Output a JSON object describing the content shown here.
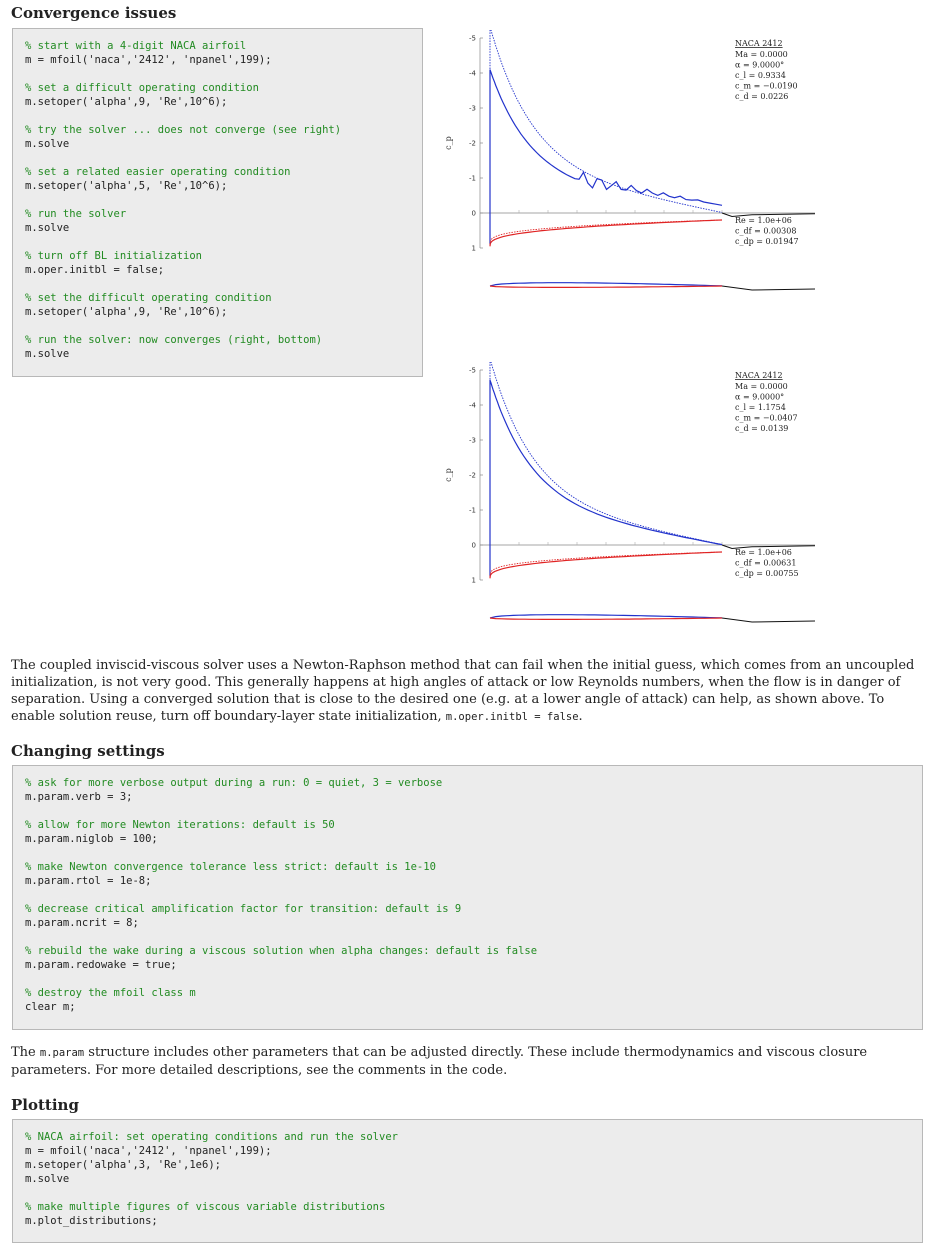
{
  "sections": {
    "convergence": {
      "heading": "Convergence issues",
      "code": [
        {
          "type": "comment",
          "text": "% start with a 4-digit NACA airfoil"
        },
        {
          "type": "code",
          "text": "m = mfoil('naca','2412', 'npanel',199);"
        },
        {
          "type": "blank",
          "text": ""
        },
        {
          "type": "comment",
          "text": "% set a difficult operating condition"
        },
        {
          "type": "code",
          "text": "m.setoper('alpha',9, 'Re',10^6);"
        },
        {
          "type": "blank",
          "text": ""
        },
        {
          "type": "comment",
          "text": "% try the solver ... does not converge (see right)"
        },
        {
          "type": "code",
          "text": "m.solve"
        },
        {
          "type": "blank",
          "text": ""
        },
        {
          "type": "comment",
          "text": "% set a related easier operating condition"
        },
        {
          "type": "code",
          "text": "m.setoper('alpha',5, 'Re',10^6);"
        },
        {
          "type": "blank",
          "text": ""
        },
        {
          "type": "comment",
          "text": "% run the solver"
        },
        {
          "type": "code",
          "text": "m.solve"
        },
        {
          "type": "blank",
          "text": ""
        },
        {
          "type": "comment",
          "text": "% turn off BL initialization"
        },
        {
          "type": "code",
          "text": "m.oper.initbl = false;"
        },
        {
          "type": "blank",
          "text": ""
        },
        {
          "type": "comment",
          "text": "% set the difficult operating condition"
        },
        {
          "type": "code",
          "text": "m.setoper('alpha',9, 'Re',10^6);"
        },
        {
          "type": "blank",
          "text": ""
        },
        {
          "type": "comment",
          "text": "% run the solver: now converges (right, bottom)"
        },
        {
          "type": "code",
          "text": "m.solve"
        }
      ],
      "paragraph_before": "The coupled inviscid-viscous solver uses a Newton-Raphson method that can fail when the initial guess, which comes from an uncoupled initialization, is not very good. This generally happens at high angles of attack or low Reynolds numbers, when the flow is in danger of separation. Using a converged solution that is close to the desired one (e.g. at a lower angle of attack) can help, as shown above. To enable solution reuse, turn off boundary-layer state initialization, ",
      "paragraph_code": "m.oper.initbl = false",
      "paragraph_after": "."
    },
    "settings": {
      "heading": "Changing settings",
      "code": [
        {
          "type": "comment",
          "text": "% ask for more verbose output during a run: 0 = quiet, 3 = verbose"
        },
        {
          "type": "code",
          "text": "m.param.verb = 3;"
        },
        {
          "type": "blank",
          "text": ""
        },
        {
          "type": "comment",
          "text": "% allow for more Newton iterations: default is 50"
        },
        {
          "type": "code",
          "text": "m.param.niglob = 100;"
        },
        {
          "type": "blank",
          "text": ""
        },
        {
          "type": "comment",
          "text": "% make Newton convergence tolerance less strict: default is 1e-10"
        },
        {
          "type": "code",
          "text": "m.param.rtol = 1e-8;"
        },
        {
          "type": "blank",
          "text": ""
        },
        {
          "type": "comment",
          "text": "% decrease critical amplification factor for transition: default is 9"
        },
        {
          "type": "code",
          "text": "m.param.ncrit = 8;"
        },
        {
          "type": "blank",
          "text": ""
        },
        {
          "type": "comment",
          "text": "% rebuild the wake during a viscous solution when alpha changes: default is false"
        },
        {
          "type": "code",
          "text": "m.param.redowake = true;"
        },
        {
          "type": "blank",
          "text": ""
        },
        {
          "type": "comment",
          "text": "% destroy the mfoil class m"
        },
        {
          "type": "code",
          "text": "clear m;"
        }
      ],
      "paragraph_before": "The ",
      "paragraph_code": "m.param",
      "paragraph_after": " structure includes other parameters that can be adjusted directly. These include thermodynamics and viscous closure parameters. For more detailed descriptions, see the comments in the code."
    },
    "plotting": {
      "heading": "Plotting",
      "code": [
        {
          "type": "comment",
          "text": "% NACA airfoil: set operating conditions and run the solver"
        },
        {
          "type": "code",
          "text": "m = mfoil('naca','2412', 'npanel',199);"
        },
        {
          "type": "code",
          "text": "m.setoper('alpha',3, 'Re',1e6);"
        },
        {
          "type": "code",
          "text": "m.solve"
        },
        {
          "type": "blank",
          "text": ""
        },
        {
          "type": "comment",
          "text": "% make multiple figures of viscous variable distributions"
        },
        {
          "type": "code",
          "text": "m.plot_distributions;"
        }
      ]
    }
  },
  "figures": [
    {
      "ylabel": "c_p",
      "yticks": [
        "-5",
        "-4",
        "-3",
        "-2",
        "-1",
        "0",
        "1"
      ],
      "info_title": "NACA 2412",
      "info": [
        "Ma = 0.0000",
        "α = 9.0000°",
        "c_l = 0.9334",
        "c_m = −0.0190",
        "c_d = 0.0226"
      ],
      "info2": [
        "Re = 1.0e+06",
        "c_df = 0.00308",
        "c_dp = 0.01947"
      ],
      "converged": false
    },
    {
      "ylabel": "c_p",
      "yticks": [
        "-5",
        "-4",
        "-3",
        "-2",
        "-1",
        "0",
        "1"
      ],
      "info_title": "NACA 2412",
      "info": [
        "Ma = 0.0000",
        "α = 9.0000°",
        "c_l = 1.1754",
        "c_m = −0.0407",
        "c_d = 0.0139"
      ],
      "info2": [
        "Re = 1.0e+06",
        "c_df = 0.00631",
        "c_dp = 0.00755"
      ],
      "converged": true
    }
  ],
  "colors": {
    "upper": "#2233cc",
    "lower": "#e02424",
    "wake": "#111111",
    "comment": "#228b22"
  }
}
